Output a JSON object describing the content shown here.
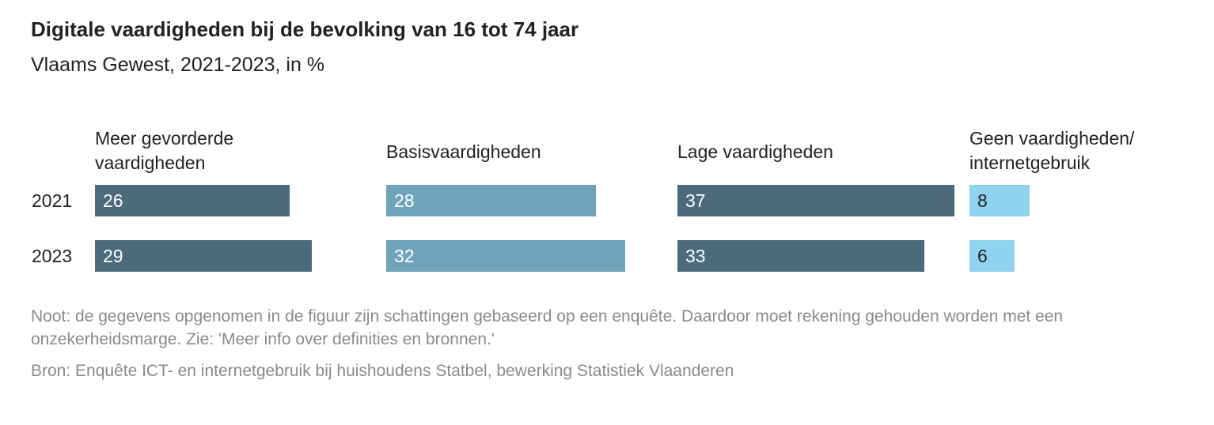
{
  "chart_data": {
    "type": "bar",
    "title": "Digitale vaardigheden bij de bevolking van 16 tot 74 jaar",
    "subtitle": "Vlaams Gewest, 2021-2023, in %",
    "categories": [
      "2021",
      "2023"
    ],
    "series": [
      {
        "name": "Meer gevorderde vaardigheden",
        "label_lines": [
          "Meer gevorderde",
          "vaardigheden"
        ],
        "values": [
          26,
          29
        ],
        "color": "#4b6b7c",
        "text_color": "#ffffff"
      },
      {
        "name": "Basisvaardigheden",
        "label_lines": [
          "Basisvaardigheden"
        ],
        "values": [
          28,
          32
        ],
        "color": "#6fa4ba",
        "text_color": "#ffffff"
      },
      {
        "name": "Lage vaardigheden",
        "label_lines": [
          "Lage vaardigheden"
        ],
        "values": [
          37,
          33
        ],
        "color": "#4b6b7c",
        "text_color": "#ffffff"
      },
      {
        "name": "Geen vaardigheden/ internetgebruik",
        "label_lines": [
          "Geen vaardigheden/",
          "internetgebruik"
        ],
        "values": [
          8,
          6
        ],
        "color": "#8fd3ef",
        "text_color": "#222222"
      }
    ],
    "xlabel": "",
    "ylabel": "",
    "grid": false
  },
  "note": "Noot: de gegevens opgenomen in de figuur zijn schattingen gebaseerd op een enquête. Daardoor moet rekening gehouden worden met een onzekerheidsmarge. Zie: 'Meer info over definities en bronnen.'",
  "source": "Bron: Enquête ICT- en internetgebruik bij huishoudens Statbel, bewerking Statistiek Vlaanderen"
}
